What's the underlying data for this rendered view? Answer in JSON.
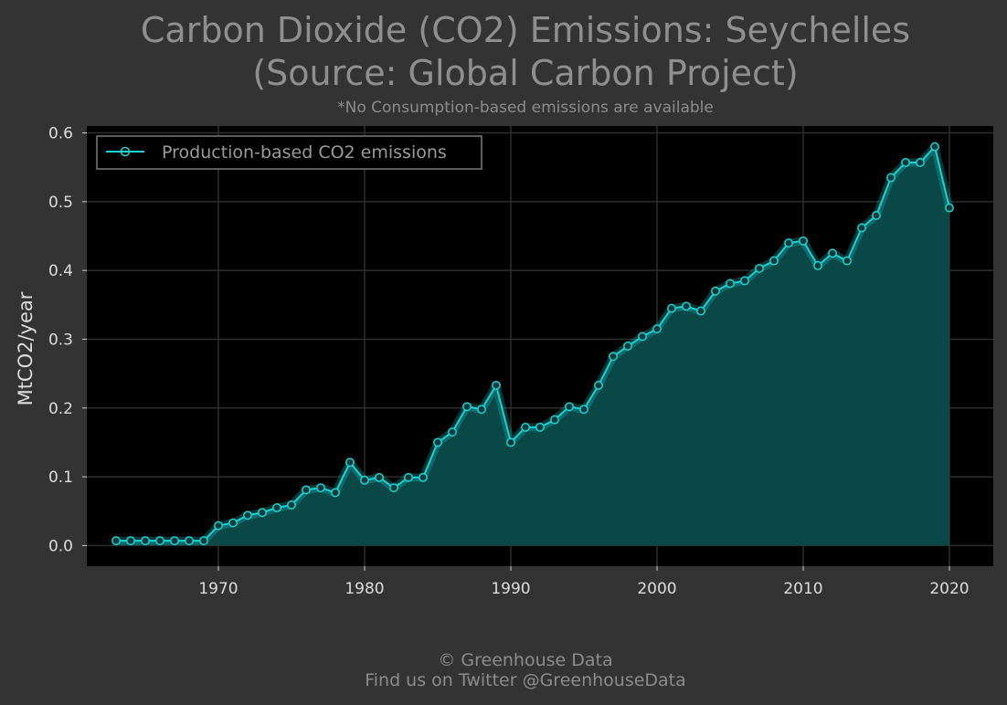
{
  "title_line1": "Carbon Dioxide (CO2) Emissions: Seychelles",
  "title_line2": "(Source: Global Carbon Project)",
  "subtitle": "*No Consumption-based emissions are available",
  "footer_line1": "© Greenhouse Data",
  "footer_line2": "Find us on Twitter @GreenhouseData",
  "colors": {
    "background": "#333333",
    "plot_background": "#000000",
    "series": "#1ad3d3",
    "fill": "#0a4747",
    "grid": "#2e2e2e"
  },
  "chart_data": {
    "type": "area",
    "title": "Carbon Dioxide (CO2) Emissions: Seychelles (Source: Global Carbon Project)",
    "xlabel": "",
    "ylabel": "MtCO2/year",
    "xlim": [
      1961,
      2023
    ],
    "ylim": [
      -0.03,
      0.61
    ],
    "x_ticks": [
      1970,
      1980,
      1990,
      2000,
      2010,
      2020
    ],
    "y_ticks": [
      "0.0",
      "0.1",
      "0.2",
      "0.3",
      "0.4",
      "0.5",
      "0.6"
    ],
    "grid": true,
    "legend_position": "top-left",
    "series": [
      {
        "name": "Production-based CO2 emissions",
        "x": [
          1963,
          1964,
          1965,
          1966,
          1967,
          1968,
          1969,
          1970,
          1971,
          1972,
          1973,
          1974,
          1975,
          1976,
          1977,
          1978,
          1979,
          1980,
          1981,
          1982,
          1983,
          1984,
          1985,
          1986,
          1987,
          1988,
          1989,
          1990,
          1991,
          1992,
          1993,
          1994,
          1995,
          1996,
          1997,
          1998,
          1999,
          2000,
          2001,
          2002,
          2003,
          2004,
          2005,
          2006,
          2007,
          2008,
          2009,
          2010,
          2011,
          2012,
          2013,
          2014,
          2015,
          2016,
          2017,
          2018,
          2019,
          2020
        ],
        "values": [
          0.007,
          0.007,
          0.007,
          0.007,
          0.007,
          0.007,
          0.007,
          0.029,
          0.033,
          0.044,
          0.048,
          0.055,
          0.059,
          0.081,
          0.084,
          0.077,
          0.121,
          0.095,
          0.099,
          0.084,
          0.099,
          0.099,
          0.15,
          0.165,
          0.202,
          0.198,
          0.233,
          0.15,
          0.172,
          0.172,
          0.183,
          0.202,
          0.198,
          0.233,
          0.275,
          0.29,
          0.304,
          0.315,
          0.345,
          0.348,
          0.341,
          0.37,
          0.381,
          0.385,
          0.403,
          0.414,
          0.44,
          0.443,
          0.407,
          0.425,
          0.414,
          0.462,
          0.48,
          0.535,
          0.557,
          0.557,
          0.58,
          0.491
        ]
      }
    ]
  }
}
